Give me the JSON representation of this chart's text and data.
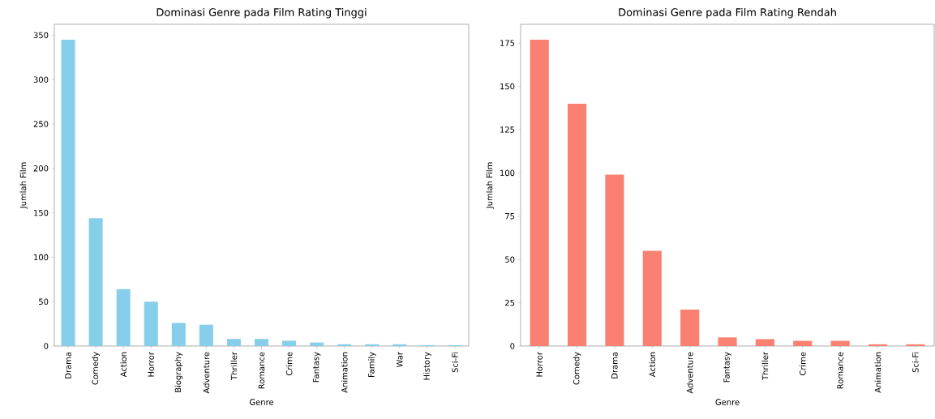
{
  "chart_data": [
    {
      "type": "bar",
      "title": "Dominasi Genre pada Film Rating Tinggi",
      "xlabel": "Genre",
      "ylabel": "Jumlah Film",
      "categories": [
        "Drama",
        "Comedy",
        "Action",
        "Horror",
        "Biography",
        "Adventure",
        "Thriller",
        "Romance",
        "Crime",
        "Fantasy",
        "Animation",
        "Family",
        "War",
        "History",
        "Sci-Fi"
      ],
      "values": [
        345,
        144,
        64,
        50,
        26,
        24,
        8,
        8,
        6,
        4,
        2,
        2,
        2,
        1,
        1
      ],
      "color": "#87ceeb",
      "ylim": [
        0,
        362.25
      ],
      "yticks": [
        0,
        50,
        100,
        150,
        200,
        250,
        300,
        350
      ]
    },
    {
      "type": "bar",
      "title": "Dominasi Genre pada Film Rating Rendah",
      "xlabel": "Genre",
      "ylabel": "Jumlah Film",
      "categories": [
        "Horror",
        "Comedy",
        "Drama",
        "Action",
        "Adventure",
        "Fantasy",
        "Thriller",
        "Crime",
        "Romance",
        "Animation",
        "Sci-Fi"
      ],
      "values": [
        177,
        140,
        99,
        55,
        21,
        5,
        4,
        3,
        3,
        1,
        1
      ],
      "color": "#fa8072",
      "ylim": [
        0,
        185.85
      ],
      "yticks": [
        0,
        25,
        50,
        75,
        100,
        125,
        150,
        175
      ]
    }
  ]
}
